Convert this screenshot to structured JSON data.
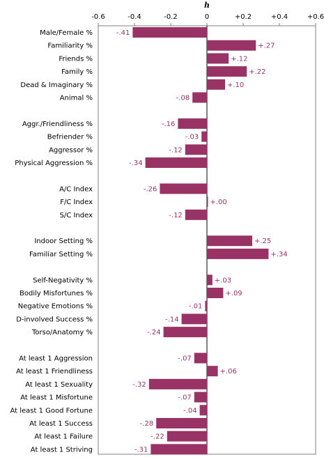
{
  "chart_data": {
    "type": "bar",
    "orientation": "horizontal",
    "title": "",
    "xlabel": "h",
    "xlim": [
      -0.6,
      0.6
    ],
    "xticks": [
      -0.6,
      -0.4,
      -0.2,
      0,
      0.2,
      0.4,
      0.6
    ],
    "tick_labels": [
      "-0.6",
      "-0.4",
      "-0.2",
      "0",
      "+0.2",
      "+0.4",
      "+0.6"
    ],
    "grid": false,
    "bar_color": "#993366",
    "value_label_color": "#993366",
    "groups": [
      {
        "items": [
          {
            "label": "Male/Female %",
            "value": -0.41,
            "value_label": "-.41"
          },
          {
            "label": "Familiarity %",
            "value": 0.27,
            "value_label": "+.27"
          },
          {
            "label": "Friends %",
            "value": 0.12,
            "value_label": "+.12"
          },
          {
            "label": "Family %",
            "value": 0.22,
            "value_label": "+.22"
          },
          {
            "label": "Dead & Imaginary %",
            "value": 0.1,
            "value_label": "+.10"
          },
          {
            "label": "Animal %",
            "value": -0.08,
            "value_label": "-.08"
          }
        ]
      },
      {
        "items": [
          {
            "label": "Aggr./Friendliness %",
            "value": -0.16,
            "value_label": "-.16"
          },
          {
            "label": "Befriender %",
            "value": -0.03,
            "value_label": "-.03"
          },
          {
            "label": "Aggressor %",
            "value": -0.12,
            "value_label": "-.12"
          },
          {
            "label": "Physical Aggression %",
            "value": -0.34,
            "value_label": "-.34"
          }
        ]
      },
      {
        "items": [
          {
            "label": "A/C Index",
            "value": -0.26,
            "value_label": "-.26"
          },
          {
            "label": "F/C Index",
            "value": 0.005,
            "value_label": "+.00"
          },
          {
            "label": "S/C Index",
            "value": -0.12,
            "value_label": "-.12"
          }
        ]
      },
      {
        "items": [
          {
            "label": "Indoor Setting %",
            "value": 0.25,
            "value_label": "+.25"
          },
          {
            "label": "Familiar Setting %",
            "value": 0.34,
            "value_label": "+.34"
          }
        ]
      },
      {
        "items": [
          {
            "label": "Self-Negativity %",
            "value": 0.03,
            "value_label": "+.03"
          },
          {
            "label": "Bodily Misfortunes %",
            "value": 0.09,
            "value_label": "+.09"
          },
          {
            "label": "Negative Emotions %",
            "value": -0.01,
            "value_label": "-.01"
          },
          {
            "label": "D-involved Success %",
            "value": -0.14,
            "value_label": "-.14"
          },
          {
            "label": "Torso/Anatomy %",
            "value": -0.24,
            "value_label": "-.24"
          }
        ]
      },
      {
        "items": [
          {
            "label": "At least 1 Aggression",
            "value": -0.07,
            "value_label": "-.07"
          },
          {
            "label": "At least 1 Friendliness",
            "value": 0.06,
            "value_label": "+.06"
          },
          {
            "label": "At least 1 Sexuality",
            "value": -0.32,
            "value_label": "-.32"
          },
          {
            "label": "At least 1 Misfortune",
            "value": -0.07,
            "value_label": "-.07"
          },
          {
            "label": "At least 1 Good Fortune",
            "value": -0.04,
            "value_label": "-.04"
          },
          {
            "label": "At least 1 Success",
            "value": -0.28,
            "value_label": "-.28"
          },
          {
            "label": "At least 1 Failure",
            "value": -0.22,
            "value_label": "-.22"
          },
          {
            "label": "At least 1 Striving",
            "value": -0.31,
            "value_label": "-.31"
          }
        ]
      }
    ]
  }
}
